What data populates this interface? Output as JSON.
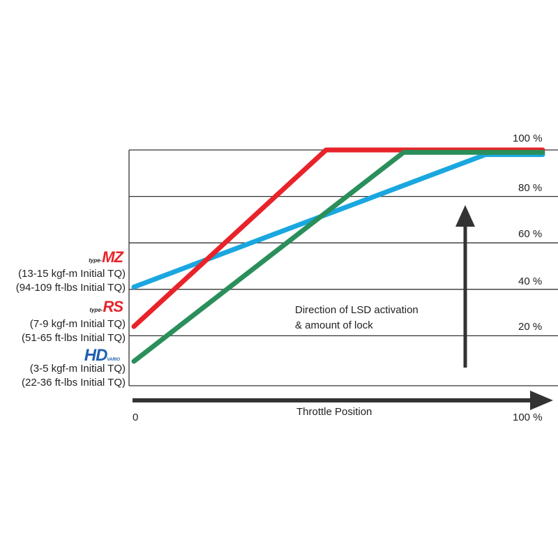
{
  "chart_data": {
    "type": "line",
    "xlabel": "Throttle Position",
    "x_ticks": [
      "0",
      "100 %"
    ],
    "y_ticks": [
      "20 %",
      "40 %",
      "60 %",
      "80 %",
      "100 %"
    ],
    "ylim": [
      0,
      100
    ],
    "xlim": [
      0,
      100
    ],
    "grid": true,
    "annotation": [
      "Direction of LSD activation",
      "& amount of lock"
    ],
    "series": [
      {
        "name": "type-MZ",
        "color": "#1aa7e0",
        "points": [
          [
            0,
            41
          ],
          [
            86,
            98
          ],
          [
            100,
            98
          ]
        ]
      },
      {
        "name": "type-RS",
        "color": "#e8232a",
        "points": [
          [
            0,
            24
          ],
          [
            47,
            100
          ],
          [
            100,
            100
          ]
        ]
      },
      {
        "name": "HD",
        "color": "#2a8f5a",
        "points": [
          [
            0,
            9
          ],
          [
            66,
            99
          ],
          [
            100,
            99
          ]
        ]
      }
    ]
  },
  "legend": [
    {
      "logo_small": "type-",
      "logo_big": "MZ",
      "line1": "(13-15 kgf-m Initial TQ)",
      "line2": "(94-109 ft-lbs Initial TQ)"
    },
    {
      "logo_small": "type-",
      "logo_big": "RS",
      "line1": "(7-9 kgf-m Initial TQ)",
      "line2": "(51-65 ft-lbs Initial TQ)"
    },
    {
      "logo_small": "VARIO",
      "logo_big": "HD",
      "line1": "(3-5 kgf-m Initial TQ)",
      "line2": "(22-36 ft-lbs Initial TQ)"
    }
  ]
}
